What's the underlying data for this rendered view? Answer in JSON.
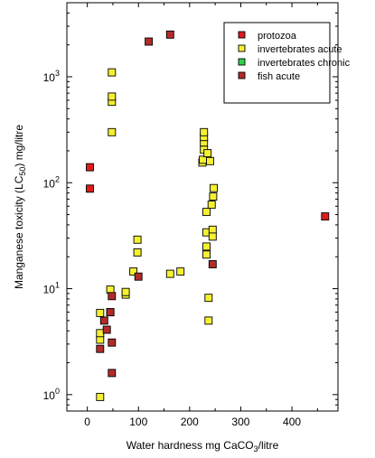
{
  "chart_data": {
    "type": "scatter",
    "title": "",
    "xlabel": "Water hardness mg CaCO3/litre",
    "xlabel_parts": [
      "Water hardness mg CaCO",
      "3",
      "/litre"
    ],
    "ylabel": "Manganese toxicity (LC50) mg/litre",
    "ylabel_parts": [
      "Manganese toxicity (LC",
      "50",
      ") mg/litre"
    ],
    "xlim": [
      -40,
      490
    ],
    "ylim": [
      0.7,
      5000
    ],
    "yscale": "log",
    "x_ticks": [
      0,
      100,
      200,
      300,
      400
    ],
    "x_tick_labels": [
      "0",
      "100",
      "200",
      "300",
      "400"
    ],
    "y_ticks": [
      1,
      10,
      100,
      1000
    ],
    "y_tick_labels": [
      {
        "base": "10",
        "exp": "0"
      },
      {
        "base": "10",
        "exp": "1"
      },
      {
        "base": "10",
        "exp": "2"
      },
      {
        "base": "10",
        "exp": "3"
      }
    ],
    "grid": false,
    "legend_position": "top-right",
    "series": [
      {
        "name": "protozoa",
        "color": "#dd1c1c",
        "points": [
          [
            5,
            88
          ],
          [
            5,
            140
          ],
          [
            465,
            48
          ]
        ]
      },
      {
        "name": "invertebrates acute",
        "color": "#f5f032",
        "points": [
          [
            25,
            0.95
          ],
          [
            25,
            3.3
          ],
          [
            25,
            3.8
          ],
          [
            25,
            5.9
          ],
          [
            45,
            9.8
          ],
          [
            48,
            300
          ],
          [
            48,
            580
          ],
          [
            48,
            650
          ],
          [
            48,
            1100
          ],
          [
            75,
            8.8
          ],
          [
            75,
            9.3
          ],
          [
            90,
            14.5
          ],
          [
            98,
            22
          ],
          [
            98,
            29
          ],
          [
            162,
            13.8
          ],
          [
            182,
            14.5
          ],
          [
            225,
            155
          ],
          [
            226,
            165
          ],
          [
            228,
            205
          ],
          [
            228,
            240
          ],
          [
            228,
            270
          ],
          [
            228,
            300
          ],
          [
            233,
            25
          ],
          [
            233,
            21
          ],
          [
            233,
            34
          ],
          [
            233,
            53
          ],
          [
            235,
            190
          ],
          [
            237,
            5
          ],
          [
            237,
            8.2
          ],
          [
            240,
            160
          ],
          [
            243,
            62
          ],
          [
            245,
            36
          ],
          [
            245,
            31
          ],
          [
            246,
            74
          ],
          [
            247,
            89
          ]
        ]
      },
      {
        "name": "invertebrates chronic",
        "color": "#2fd24c",
        "points": [
          [
            45,
            6
          ]
        ]
      },
      {
        "name": "fish acute",
        "color": "#b22b2b",
        "points": [
          [
            25,
            2.7
          ],
          [
            33,
            5
          ],
          [
            38,
            4.1
          ],
          [
            45,
            6
          ],
          [
            48,
            8.5
          ],
          [
            48,
            3.1
          ],
          [
            48,
            1.6
          ],
          [
            100,
            13
          ],
          [
            120,
            2150
          ],
          [
            162,
            2500
          ],
          [
            245,
            17
          ]
        ]
      }
    ]
  }
}
